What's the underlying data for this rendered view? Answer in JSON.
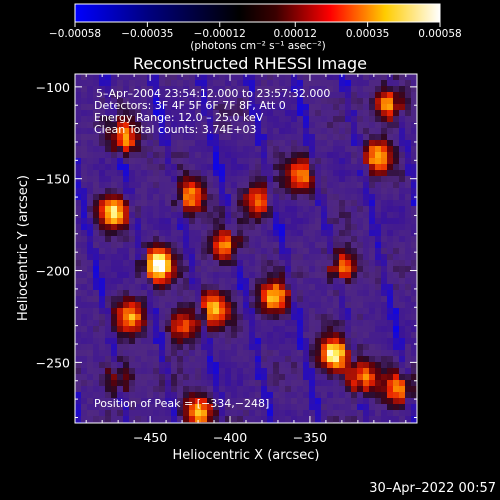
{
  "colorbar": {
    "tick_labels": [
      "-0.00058",
      "-0.00035",
      "-0.00012",
      "0.00012",
      "0.00035",
      "0.00058"
    ],
    "range": [
      -0.00058,
      0.00058
    ],
    "unit_label": "(photons cm⁻² s⁻¹ asec⁻²)",
    "colors": [
      "#0000ff",
      "#000000",
      "#ff0000",
      "#ffff00",
      "#ffffff"
    ]
  },
  "chart_data": {
    "type": "heatmap",
    "title": "Reconstructed RHESSI Image",
    "xlabel": "Heliocentric X (arcsec)",
    "ylabel": "Heliocentric Y (arcsec)",
    "xlim": [
      -497,
      -283
    ],
    "ylim": [
      -283,
      -93
    ],
    "x_ticks": [
      -450,
      -400,
      -350
    ],
    "y_ticks": [
      -250,
      -200,
      -150,
      -100
    ],
    "x_tick_labels": [
      "−450",
      "−400",
      "−350"
    ],
    "y_tick_labels": [
      "−250",
      "−200",
      "−150",
      "−100"
    ],
    "colormap": "rhessi-hot",
    "value_range": [
      -0.00058,
      0.00058
    ],
    "bright_sources": [
      {
        "x": -445,
        "y": -197,
        "v": 0.00058
      },
      {
        "x": -473,
        "y": -168,
        "v": 0.00042
      },
      {
        "x": -467,
        "y": -128,
        "v": 0.0004
      },
      {
        "x": -425,
        "y": -160,
        "v": 0.00036
      },
      {
        "x": -410,
        "y": -220,
        "v": 0.0004
      },
      {
        "x": -403,
        "y": -187,
        "v": 0.00034
      },
      {
        "x": -382,
        "y": -162,
        "v": 0.0003
      },
      {
        "x": -355,
        "y": -148,
        "v": 0.00032
      },
      {
        "x": -372,
        "y": -215,
        "v": 0.00044
      },
      {
        "x": -330,
        "y": -198,
        "v": 0.0004
      },
      {
        "x": -300,
        "y": -110,
        "v": 0.00044
      },
      {
        "x": -308,
        "y": -138,
        "v": 0.00036
      },
      {
        "x": -335,
        "y": -246,
        "v": 0.00058
      },
      {
        "x": -318,
        "y": -258,
        "v": 0.00042
      },
      {
        "x": -420,
        "y": -277,
        "v": 0.0004
      },
      {
        "x": -470,
        "y": -258,
        "v": 0.00022
      },
      {
        "x": -462,
        "y": -225,
        "v": 0.00034
      },
      {
        "x": -430,
        "y": -230,
        "v": 0.0003
      },
      {
        "x": -295,
        "y": -265,
        "v": 0.00028
      }
    ],
    "annotations": {
      "time_range": "5–Apr–2004 23:54:12.000 to 23:57:32.000",
      "detectors": "Detectors: 3F 4F 5F 6F 7F 8F, Att 0",
      "energy": "Energy Range: 12.0 – 25.0 keV",
      "clean": "Clean     Total counts: 3.74E+03",
      "peak": "Position of Peak = [−334,−248]"
    }
  },
  "timestamp": "30–Apr–2022 00:57"
}
